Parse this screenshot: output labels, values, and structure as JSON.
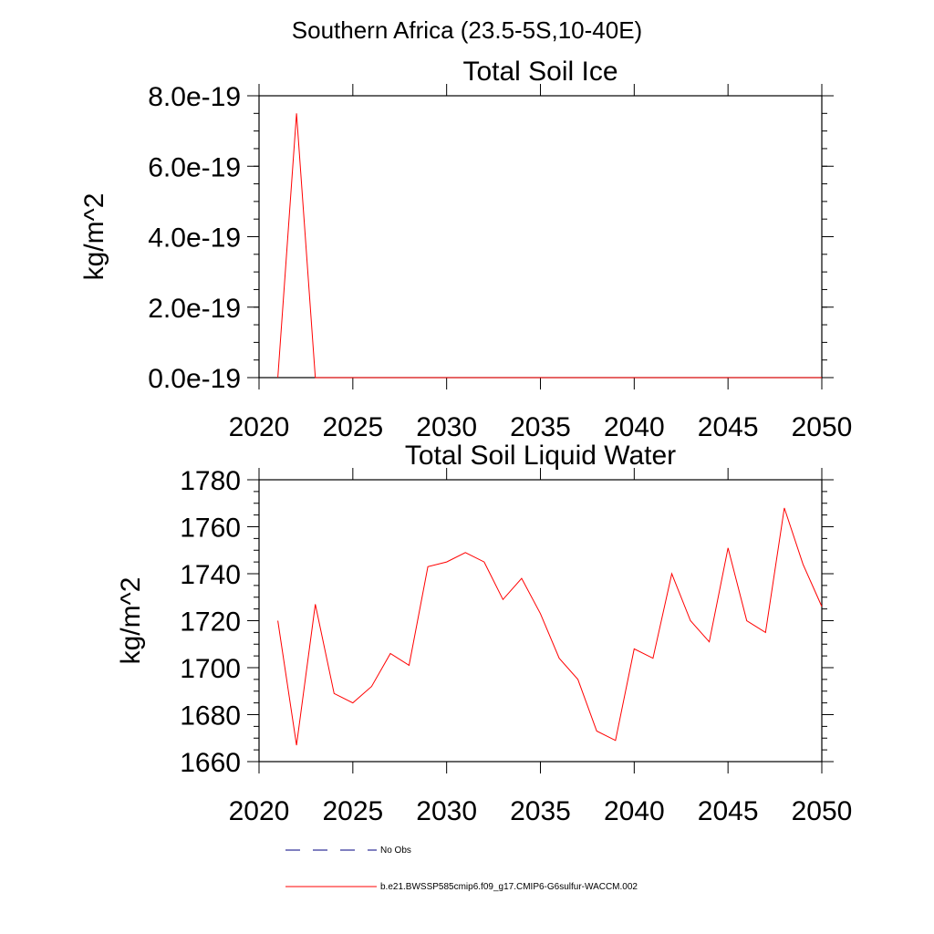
{
  "figure_title": "Southern Africa (23.5-5S,10-40E)",
  "legend": {
    "entries": [
      {
        "label": "No Obs",
        "color": "#000080",
        "dash": "dashed"
      },
      {
        "label": "b.e21.BWSSP585cmip6.f09_g17.CMIP6-G6sulfur-WACCM.002",
        "color": "#ff0000",
        "dash": "solid"
      }
    ]
  },
  "chart_data": [
    {
      "type": "line",
      "title": "Total Soil Ice",
      "xlabel": "",
      "ylabel": "kg/m^2",
      "xlim": [
        2020,
        2050
      ],
      "ylim": [
        0,
        8e-19
      ],
      "x_ticks": [
        2020,
        2025,
        2030,
        2035,
        2040,
        2045,
        2050
      ],
      "x_tick_labels": [
        "2020",
        "2025",
        "2030",
        "2035",
        "2040",
        "2045",
        "2050"
      ],
      "y_ticks": [
        0,
        2e-19,
        4e-19,
        6e-19,
        8e-19
      ],
      "y_tick_labels": [
        "0.0e-19",
        "2.0e-19",
        "4.0e-19",
        "6.0e-19",
        "8.0e-19"
      ],
      "y_minor_step": 5e-20,
      "grid": false,
      "series": [
        {
          "color": "#ff0000",
          "x": [
            2021,
            2022,
            2023,
            2024,
            2025,
            2026,
            2027,
            2028,
            2029,
            2030,
            2031,
            2032,
            2033,
            2034,
            2035,
            2036,
            2037,
            2038,
            2039,
            2040,
            2041,
            2042,
            2043,
            2044,
            2045,
            2046,
            2047,
            2048,
            2049,
            2050
          ],
          "y": [
            0,
            7.5e-19,
            0,
            0,
            0,
            0,
            0,
            0,
            0,
            0,
            0,
            0,
            0,
            0,
            0,
            0,
            0,
            0,
            0,
            0,
            0,
            0,
            0,
            0,
            0,
            0,
            0,
            0,
            0,
            0
          ]
        }
      ]
    },
    {
      "type": "line",
      "title": "Total Soil Liquid Water",
      "xlabel": "",
      "ylabel": "kg/m^2",
      "xlim": [
        2020,
        2050
      ],
      "ylim": [
        1660,
        1780
      ],
      "x_ticks": [
        2020,
        2025,
        2030,
        2035,
        2040,
        2045,
        2050
      ],
      "x_tick_labels": [
        "2020",
        "2025",
        "2030",
        "2035",
        "2040",
        "2045",
        "2050"
      ],
      "y_ticks": [
        1660,
        1680,
        1700,
        1720,
        1740,
        1760,
        1780
      ],
      "y_tick_labels": [
        "1660",
        "1680",
        "1700",
        "1720",
        "1740",
        "1760",
        "1780"
      ],
      "y_minor_step": 5,
      "grid": false,
      "series": [
        {
          "color": "#ff0000",
          "x": [
            2021,
            2022,
            2023,
            2024,
            2025,
            2026,
            2027,
            2028,
            2029,
            2030,
            2031,
            2032,
            2033,
            2034,
            2035,
            2036,
            2037,
            2038,
            2039,
            2040,
            2041,
            2042,
            2043,
            2044,
            2045,
            2046,
            2047,
            2048,
            2049,
            2050
          ],
          "y": [
            1720,
            1667,
            1727,
            1689,
            1685,
            1692,
            1706,
            1701,
            1743,
            1745,
            1749,
            1745,
            1729,
            1738,
            1723,
            1704,
            1695,
            1673,
            1669,
            1708,
            1704,
            1740,
            1720,
            1711,
            1751,
            1720,
            1715,
            1768,
            1744,
            1726
          ]
        }
      ]
    }
  ]
}
